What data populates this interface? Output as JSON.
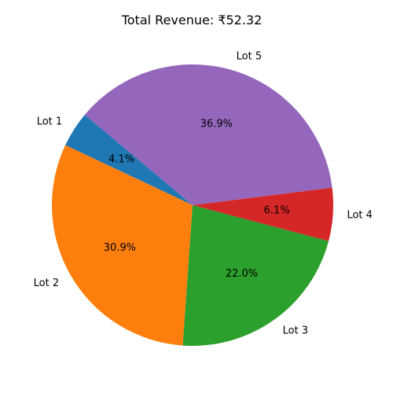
{
  "chart_data": {
    "type": "pie",
    "title": "Total Revenue: ₹52.32",
    "categories": [
      "Lot 1",
      "Lot 2",
      "Lot 3",
      "Lot 4",
      "Lot 5"
    ],
    "values": [
      4.1,
      30.9,
      22.0,
      6.1,
      36.9
    ],
    "value_labels": [
      "4.1%",
      "30.9%",
      "22.0%",
      "6.1%",
      "36.9%"
    ],
    "colors": [
      "#1f77b4",
      "#ff7f0e",
      "#2ca02c",
      "#d62728",
      "#9467bd"
    ],
    "start_angle_deg": 140,
    "direction": "counterclockwise",
    "legend": "none"
  }
}
